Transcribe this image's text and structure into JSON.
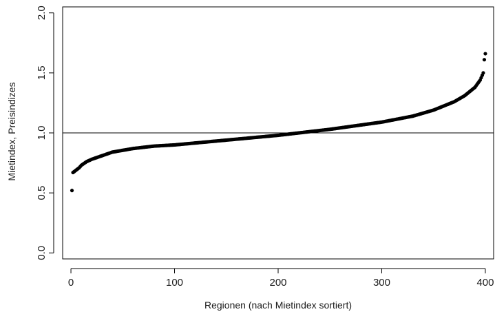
{
  "chart_data": {
    "type": "scatter",
    "title": "",
    "xlabel": "Regionen (nach Mietindex sortiert)",
    "ylabel": "Mietindex, Preisindizes",
    "xlim": [
      -8,
      408
    ],
    "ylim": [
      -0.05,
      2.05
    ],
    "x_ticks": [
      0,
      100,
      200,
      300,
      400
    ],
    "y_ticks": [
      0.0,
      0.5,
      1.0,
      1.5,
      2.0
    ],
    "x_tick_labels": [
      "0",
      "100",
      "200",
      "300",
      "400"
    ],
    "y_tick_labels": [
      "0.0",
      "0.5",
      "1.0",
      "1.5",
      "2.0"
    ],
    "reference_line_y": 1.0,
    "grid": false,
    "point_color": "#000000",
    "n_points": 401,
    "sorted_curve_knots": [
      [
        1,
        0.52
      ],
      [
        2,
        0.67
      ],
      [
        5,
        0.69
      ],
      [
        8,
        0.71
      ],
      [
        10,
        0.73
      ],
      [
        15,
        0.76
      ],
      [
        20,
        0.78
      ],
      [
        30,
        0.81
      ],
      [
        40,
        0.84
      ],
      [
        60,
        0.87
      ],
      [
        80,
        0.89
      ],
      [
        100,
        0.9
      ],
      [
        150,
        0.94
      ],
      [
        200,
        0.98
      ],
      [
        250,
        1.03
      ],
      [
        300,
        1.09
      ],
      [
        330,
        1.14
      ],
      [
        350,
        1.19
      ],
      [
        370,
        1.26
      ],
      [
        380,
        1.31
      ],
      [
        390,
        1.38
      ],
      [
        395,
        1.44
      ],
      [
        398,
        1.5
      ],
      [
        399,
        1.61
      ],
      [
        400,
        1.66
      ]
    ]
  }
}
